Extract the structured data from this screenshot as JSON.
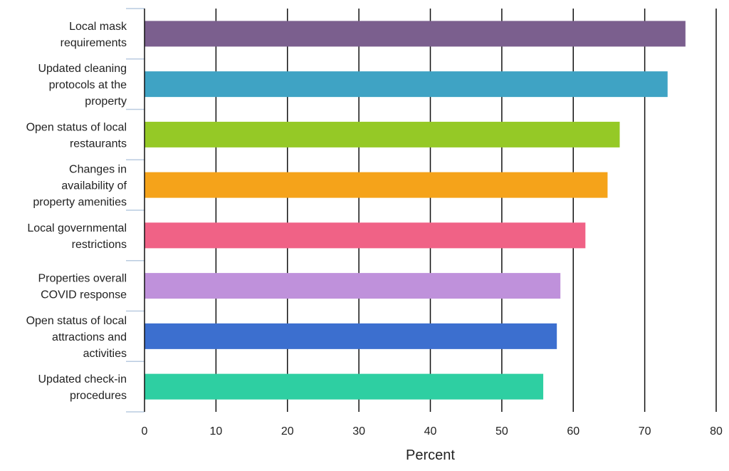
{
  "chart_data": {
    "type": "bar",
    "orientation": "horizontal",
    "categories": [
      "Local mask requirements",
      "Updated cleaning protocols at the property",
      "Open status of local restaurants",
      "Changes in availability of property amenities",
      "Local governmental restrictions",
      "Properties overall COVID response",
      "Open status of local attractions and activities",
      "Updated check-in procedures"
    ],
    "category_lines": [
      [
        "Local mask",
        "requirements"
      ],
      [
        "Updated cleaning",
        "protocols at the",
        "property"
      ],
      [
        "Open status of local",
        "restaurants"
      ],
      [
        "Changes in",
        "availability of",
        "property amenities"
      ],
      [
        "Local governmental",
        "restrictions"
      ],
      [
        "Properties overall",
        "COVID response"
      ],
      [
        "Open status of local",
        "attractions and",
        "activities"
      ],
      [
        "Updated check-in",
        "procedures"
      ]
    ],
    "values": [
      75.7,
      73.2,
      66.5,
      64.8,
      61.7,
      58.2,
      57.7,
      55.8
    ],
    "colors": [
      "#7b5f8e",
      "#3fa3c4",
      "#95c926",
      "#f5a31a",
      "#f06286",
      "#bf91db",
      "#3c6fcf",
      "#2ecfa2"
    ],
    "title": "",
    "xlabel": "Percent",
    "ylabel": "",
    "xlim": [
      0,
      80
    ],
    "xticks": [
      0,
      10,
      20,
      30,
      40,
      50,
      60,
      70,
      80
    ],
    "grid": "vertical",
    "legend": "none"
  }
}
